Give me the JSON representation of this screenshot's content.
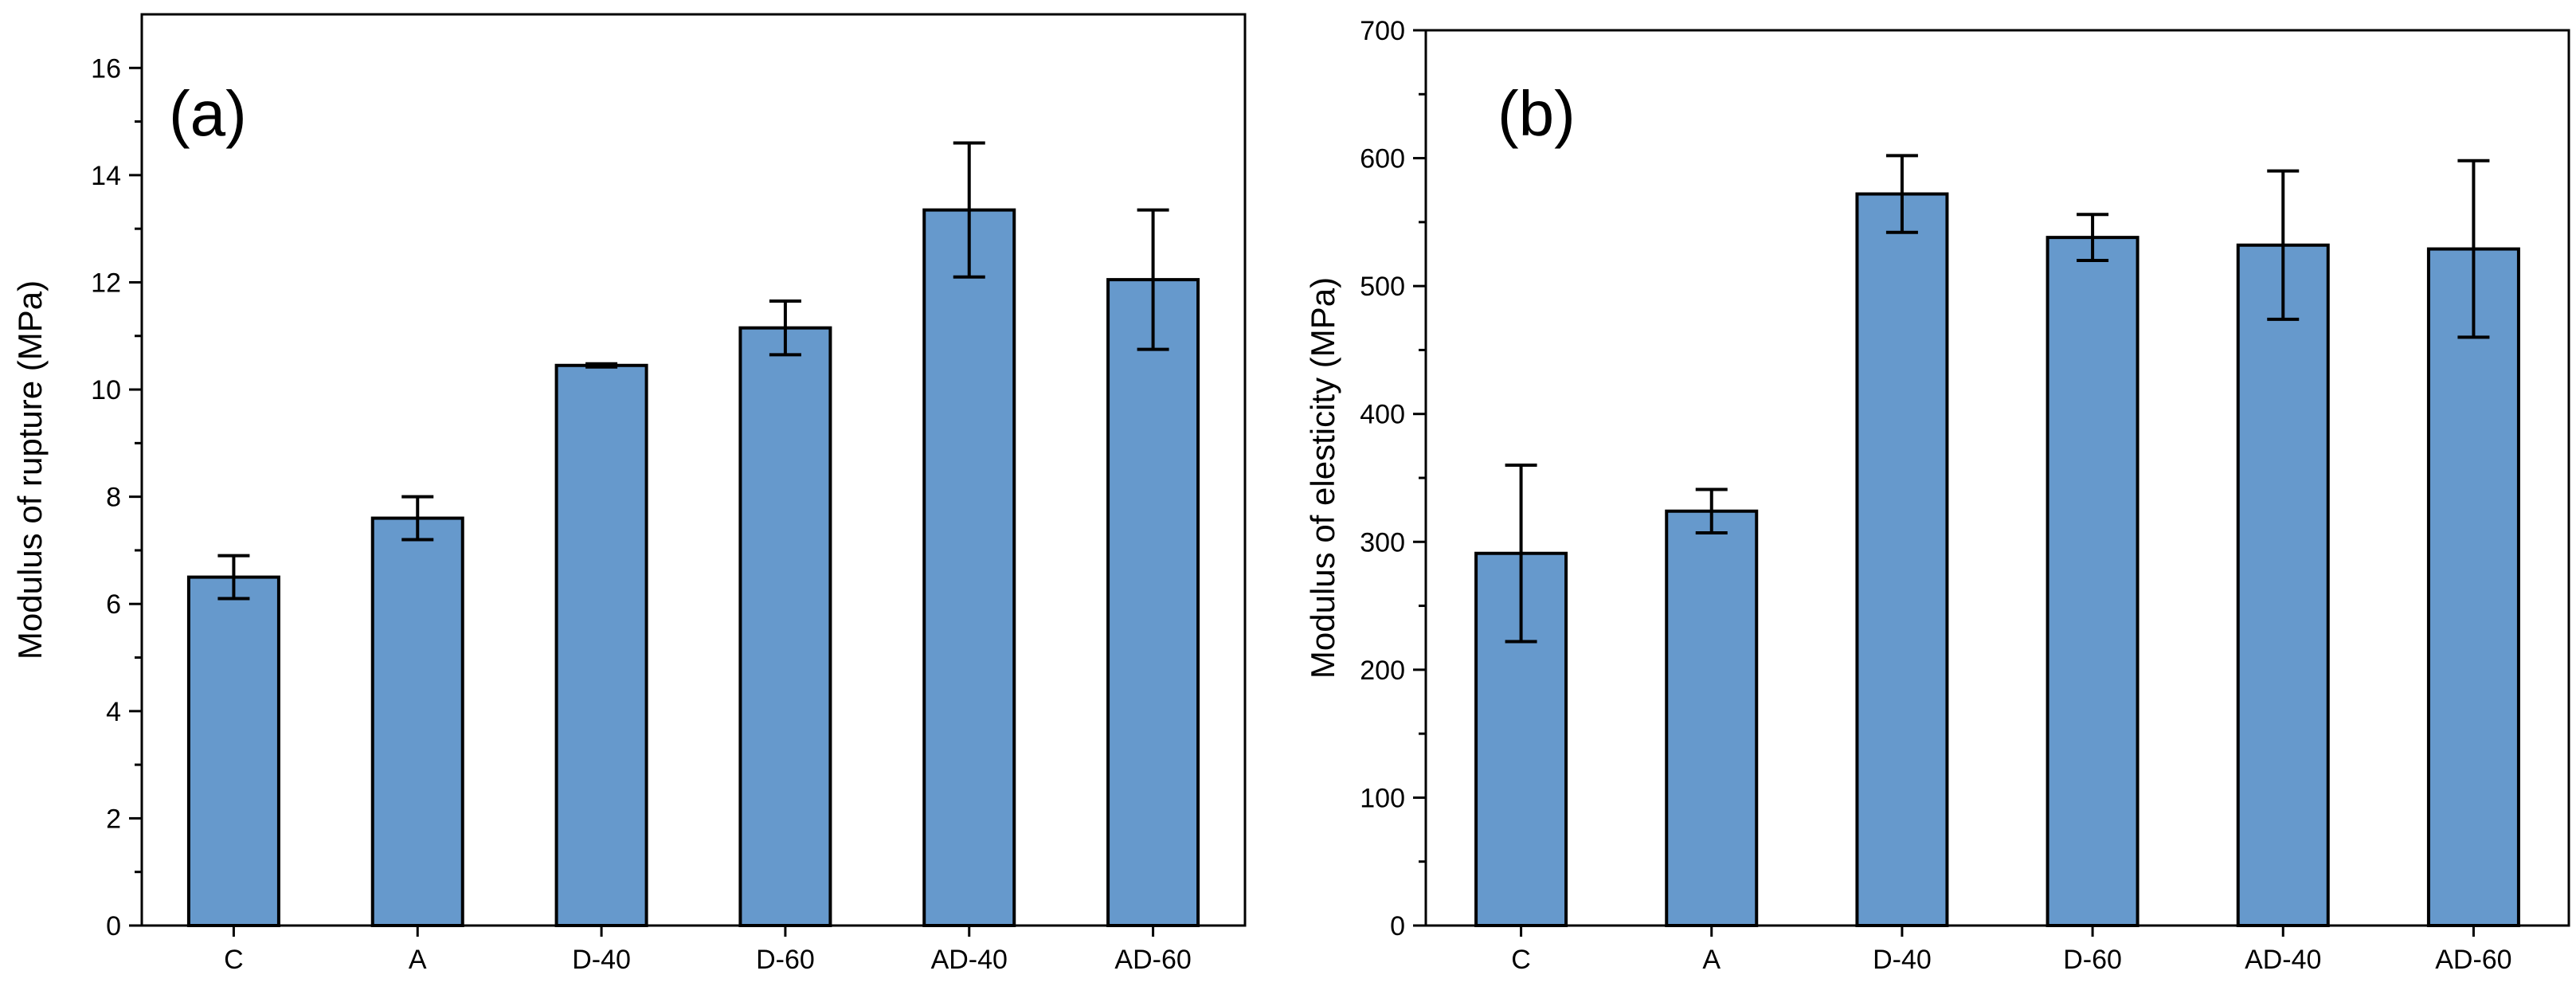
{
  "colors": {
    "bar_fill": "#6699CC",
    "bar_stroke": "#000000",
    "axis": "#000000"
  },
  "chart_data": [
    {
      "type": "bar",
      "panel_label": "(a)",
      "title": "",
      "xlabel": "",
      "ylabel": "Modulus of rupture (MPa)",
      "categories": [
        "C",
        "A",
        "D-40",
        "D-60",
        "AD-40",
        "AD-60"
      ],
      "values": [
        6.5,
        7.6,
        10.45,
        11.15,
        13.35,
        12.05
      ],
      "errors": [
        0.4,
        0.4,
        0.03,
        0.5,
        1.25,
        1.3
      ],
      "ylim": [
        0,
        17
      ],
      "yticks": [
        0,
        2,
        4,
        6,
        8,
        10,
        12,
        14,
        16
      ],
      "ytick_labels": [
        "0",
        "2",
        "4",
        "6",
        "8",
        "10",
        "12",
        "14",
        "16"
      ],
      "grid": false
    },
    {
      "type": "bar",
      "panel_label": "(b)",
      "title": "",
      "xlabel": "",
      "ylabel": "Modulus of elesticity (MPa)",
      "categories": [
        "C",
        "A",
        "D-40",
        "D-60",
        "AD-40",
        "AD-60"
      ],
      "values": [
        291,
        324,
        572,
        538,
        532,
        529
      ],
      "errors": [
        69,
        17,
        30,
        18,
        58,
        69
      ],
      "ylim": [
        0,
        700
      ],
      "yticks": [
        0,
        100,
        200,
        300,
        400,
        500,
        600,
        700
      ],
      "ytick_labels": [
        "0",
        "100",
        "200",
        "300",
        "400",
        "500",
        "600",
        "700"
      ],
      "grid": false
    }
  ]
}
